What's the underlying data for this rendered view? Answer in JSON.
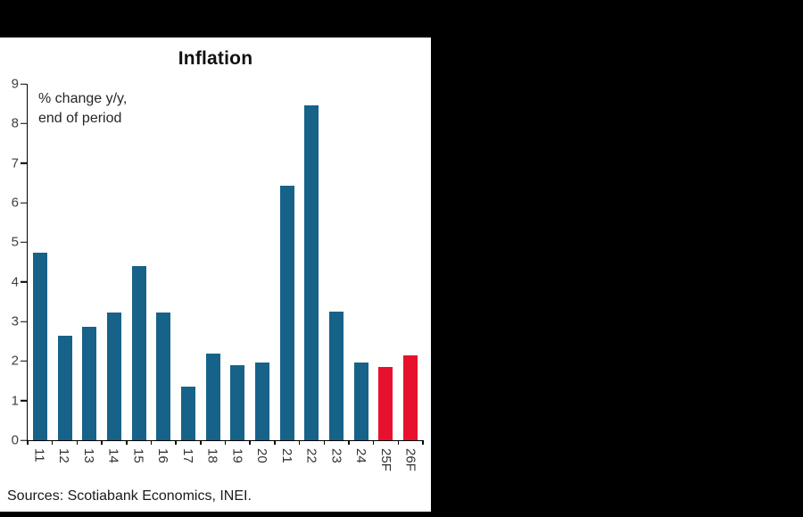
{
  "chart_data": {
    "type": "bar",
    "title": "Inflation",
    "annotation_line1": "% change y/y,",
    "annotation_line2": "end of period",
    "categories": [
      "11",
      "12",
      "13",
      "14",
      "15",
      "16",
      "17",
      "18",
      "19",
      "20",
      "21",
      "22",
      "23",
      "24",
      "25F",
      "26F"
    ],
    "values": [
      4.74,
      2.65,
      2.86,
      3.22,
      4.4,
      3.23,
      1.36,
      2.19,
      1.9,
      1.97,
      6.43,
      8.46,
      3.24,
      1.97,
      1.85,
      2.15
    ],
    "series_name": "Inflation, % change y/y, end of period",
    "ylim": [
      0,
      9
    ],
    "y_ticks": [
      0,
      1,
      2,
      3,
      4,
      5,
      6,
      7,
      8,
      9
    ],
    "bar_color": "#176288",
    "forecast_color": "#e8112d",
    "forecast_categories": [
      "25F",
      "26F"
    ],
    "grid": false,
    "legend_position": "none",
    "xlabel": "",
    "ylabel": "",
    "source": "Sources: Scotiabank Economics, INEI."
  },
  "page": {
    "background_color": "#000000",
    "panel_color": "#ffffff"
  }
}
